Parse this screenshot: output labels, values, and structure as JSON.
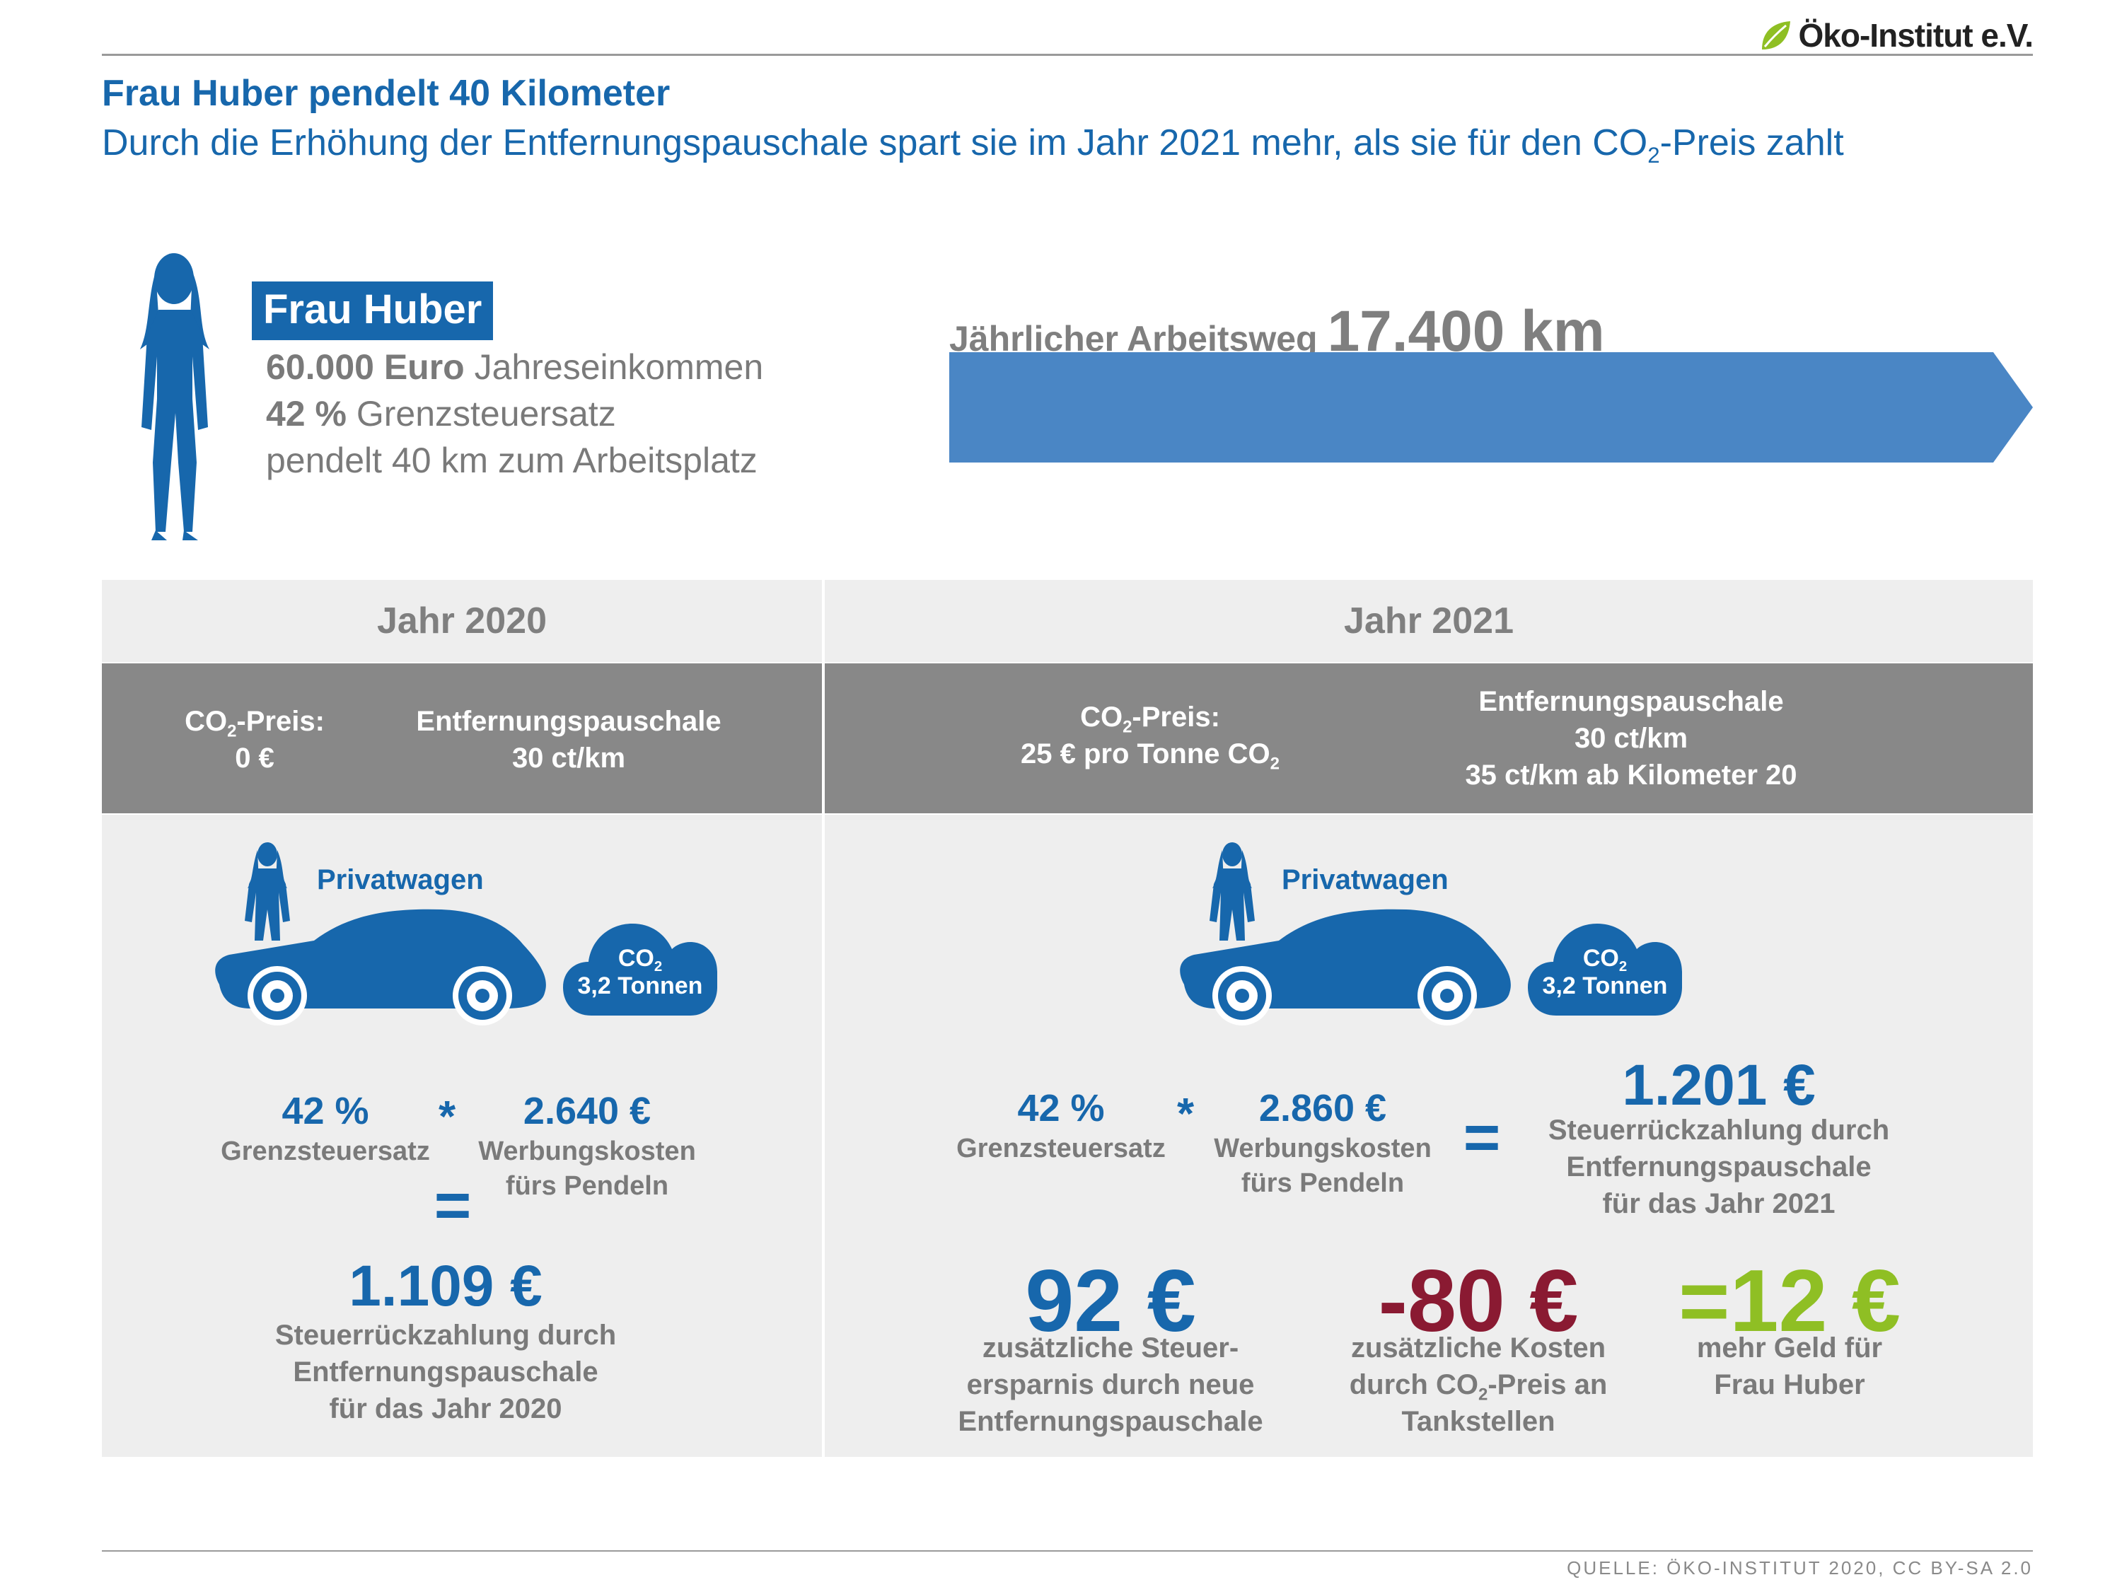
{
  "header": {
    "title": "Frau Huber pendelt 40 Kilometer",
    "subtitle_pre": "Durch die Erhöhung der Entfernungspauschale spart sie im Jahr 2021 mehr, als sie für den CO",
    "subtitle_sub": "2",
    "subtitle_post": "-Preis zahlt",
    "logo_text": "Öko-Institut e.V."
  },
  "person": {
    "name": "Frau Huber",
    "income_value": "60.000 Euro",
    "income_label": "Jahreseinkommen",
    "tax_value": "42 %",
    "tax_label": "Grenzsteuersatz",
    "commute_text": "pendelt 40 km zum Arbeitsplatz"
  },
  "commute": {
    "label": "Jährlicher Arbeitsweg",
    "value": "17.400 km"
  },
  "year2020": {
    "heading": "Jahr 2020",
    "co2_price_label_pre": "CO",
    "co2_price_label_sub": "2",
    "co2_price_label_post": "-Preis:",
    "co2_price_value": "0 €",
    "pauschale_label": "Entfernungspauschale",
    "pauschale_value": "30 ct/km",
    "car_label": "Privatwagen",
    "cloud_co2": "CO",
    "cloud_sub": "2",
    "cloud_amount": "3,2 Tonnen",
    "rate_value": "42 %",
    "rate_label": "Grenzsteuersatz",
    "multiply": "*",
    "costs_value": "2.640 €",
    "costs_label_1": "Werbungskosten",
    "costs_label_2": "fürs Pendeln",
    "equals": "=",
    "result_value": "1.109 €",
    "result_label_1": "Steuerrückzahlung durch",
    "result_label_2": "Entfernungspauschale",
    "result_label_3": "für das Jahr 2020"
  },
  "year2021": {
    "heading": "Jahr 2021",
    "co2_price_label_pre": "CO",
    "co2_price_label_sub": "2",
    "co2_price_label_post": "-Preis:",
    "co2_price_value_pre": "25 € pro Tonne CO",
    "co2_price_value_sub": "2",
    "pauschale_label": "Entfernungspauschale",
    "pauschale_value_1": "30 ct/km",
    "pauschale_value_2": "35 ct/km ab Kilometer 20",
    "car_label": "Privatwagen",
    "cloud_co2": "CO",
    "cloud_sub": "2",
    "cloud_amount": "3,2 Tonnen",
    "rate_value": "42 %",
    "rate_label": "Grenzsteuersatz",
    "multiply": "*",
    "costs_value": "2.860 €",
    "costs_label_1": "Werbungskosten",
    "costs_label_2": "fürs Pendeln",
    "equals": "=",
    "result_value": "1.201 €",
    "result_label_1": "Steuerrückzahlung durch",
    "result_label_2": "Entfernungspauschale",
    "result_label_3": "für das Jahr 2021",
    "saving_value": "92 €",
    "saving_label_1": "zusätzliche Steuer-",
    "saving_label_2": "ersparnis durch neue",
    "saving_label_3": "Entfernungspauschale",
    "cost_value": "-80 €",
    "cost_label_1": "zusätzliche Kosten",
    "cost_label_2_pre": "durch CO",
    "cost_label_2_sub": "2",
    "cost_label_2_post": "-Preis an",
    "cost_label_3": "Tankstellen",
    "net_value": "=12 €",
    "net_label_1": "mehr Geld für",
    "net_label_2": "Frau Huber"
  },
  "footer": {
    "source": "QUELLE: ÖKO-INSTITUT 2020, CC BY-SA 2.0"
  },
  "colors": {
    "blue": "#1767ac",
    "arrow_blue": "#4a86c5",
    "panel_grey": "#888888",
    "panel_light": "#eeeeee",
    "red": "#8a1a32",
    "green": "#8fbf24"
  }
}
